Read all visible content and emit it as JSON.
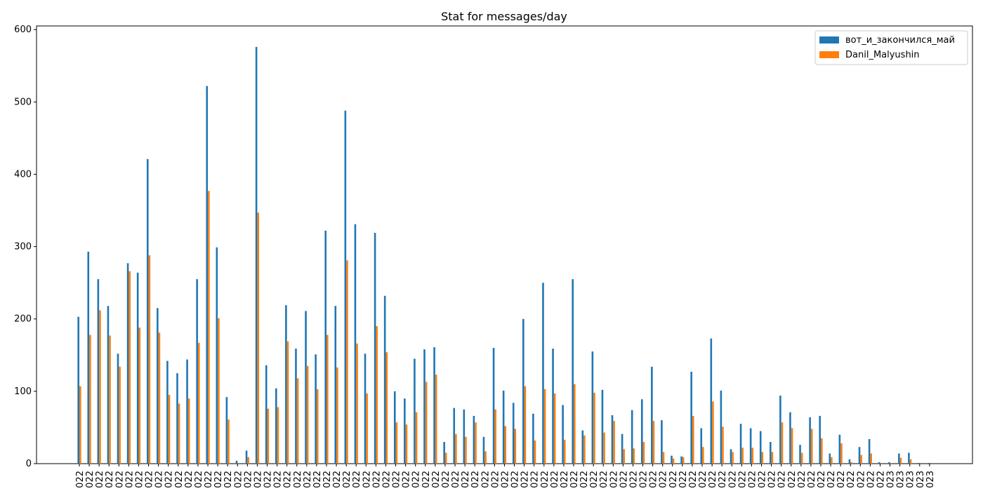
{
  "chart_data": {
    "type": "bar",
    "title": "Stat for messages/day",
    "categories": [
      "022",
      "022",
      "022",
      "022",
      "022",
      "022",
      "022",
      "022",
      "022",
      "022",
      "022",
      "022",
      "022",
      "022",
      "022",
      "022",
      "022",
      "022",
      "022",
      "022",
      "022",
      "022",
      "022",
      "022",
      "022",
      "022",
      "022",
      "022",
      "022",
      "022",
      "022",
      "022",
      "022",
      "022",
      "022",
      "022",
      "022",
      "022",
      "022",
      "022",
      "022",
      "022",
      "022",
      "022",
      "022",
      "022",
      "022",
      "022",
      "022",
      "022",
      "022",
      "022",
      "022",
      "022",
      "022",
      "022",
      "022",
      "022",
      "022",
      "022",
      "022",
      "022",
      "022",
      "022",
      "022",
      "022",
      "022",
      "022",
      "022",
      "022",
      "022",
      "022",
      "022",
      "022",
      "022",
      "022",
      "022",
      "022",
      "022",
      "022",
      "022",
      "022",
      "023",
      "023",
      "023",
      "023",
      "023"
    ],
    "series": [
      {
        "name": "вот_и_закончился_май",
        "color": "#1f77b4",
        "values": [
          203,
          293,
          255,
          218,
          152,
          277,
          264,
          421,
          215,
          142,
          125,
          144,
          255,
          522,
          299,
          92,
          4,
          18,
          576,
          136,
          104,
          219,
          159,
          211,
          151,
          322,
          218,
          488,
          331,
          152,
          319,
          232,
          100,
          90,
          145,
          158,
          161,
          30,
          77,
          75,
          66,
          37,
          160,
          101,
          84,
          200,
          69,
          250,
          159,
          81,
          255,
          46,
          155,
          102,
          67,
          41,
          74,
          89,
          134,
          60,
          11,
          10,
          127,
          49,
          173,
          101,
          20,
          55,
          49,
          45,
          30,
          94,
          71,
          26,
          64,
          66,
          14,
          40,
          6,
          23,
          34,
          2,
          2,
          14,
          15,
          1,
          1
        ]
      },
      {
        "name": "Danil_Malyushin",
        "color": "#ff7f0e",
        "values": [
          107,
          178,
          212,
          177,
          134,
          266,
          188,
          288,
          181,
          95,
          83,
          90,
          167,
          377,
          201,
          61,
          1,
          9,
          347,
          76,
          78,
          169,
          118,
          135,
          103,
          178,
          133,
          281,
          166,
          97,
          190,
          154,
          57,
          54,
          71,
          113,
          123,
          15,
          41,
          37,
          57,
          17,
          75,
          52,
          48,
          107,
          32,
          103,
          97,
          33,
          110,
          39,
          98,
          43,
          59,
          20,
          21,
          30,
          59,
          16,
          7,
          9,
          66,
          23,
          86,
          51,
          16,
          22,
          22,
          16,
          16,
          57,
          49,
          15,
          48,
          35,
          9,
          28,
          2,
          12,
          14,
          1,
          1,
          8,
          6,
          0,
          0
        ]
      }
    ],
    "ylim": [
      0,
      605
    ],
    "yticks": [
      0,
      100,
      200,
      300,
      400,
      500,
      600
    ],
    "legend": "upper right"
  }
}
